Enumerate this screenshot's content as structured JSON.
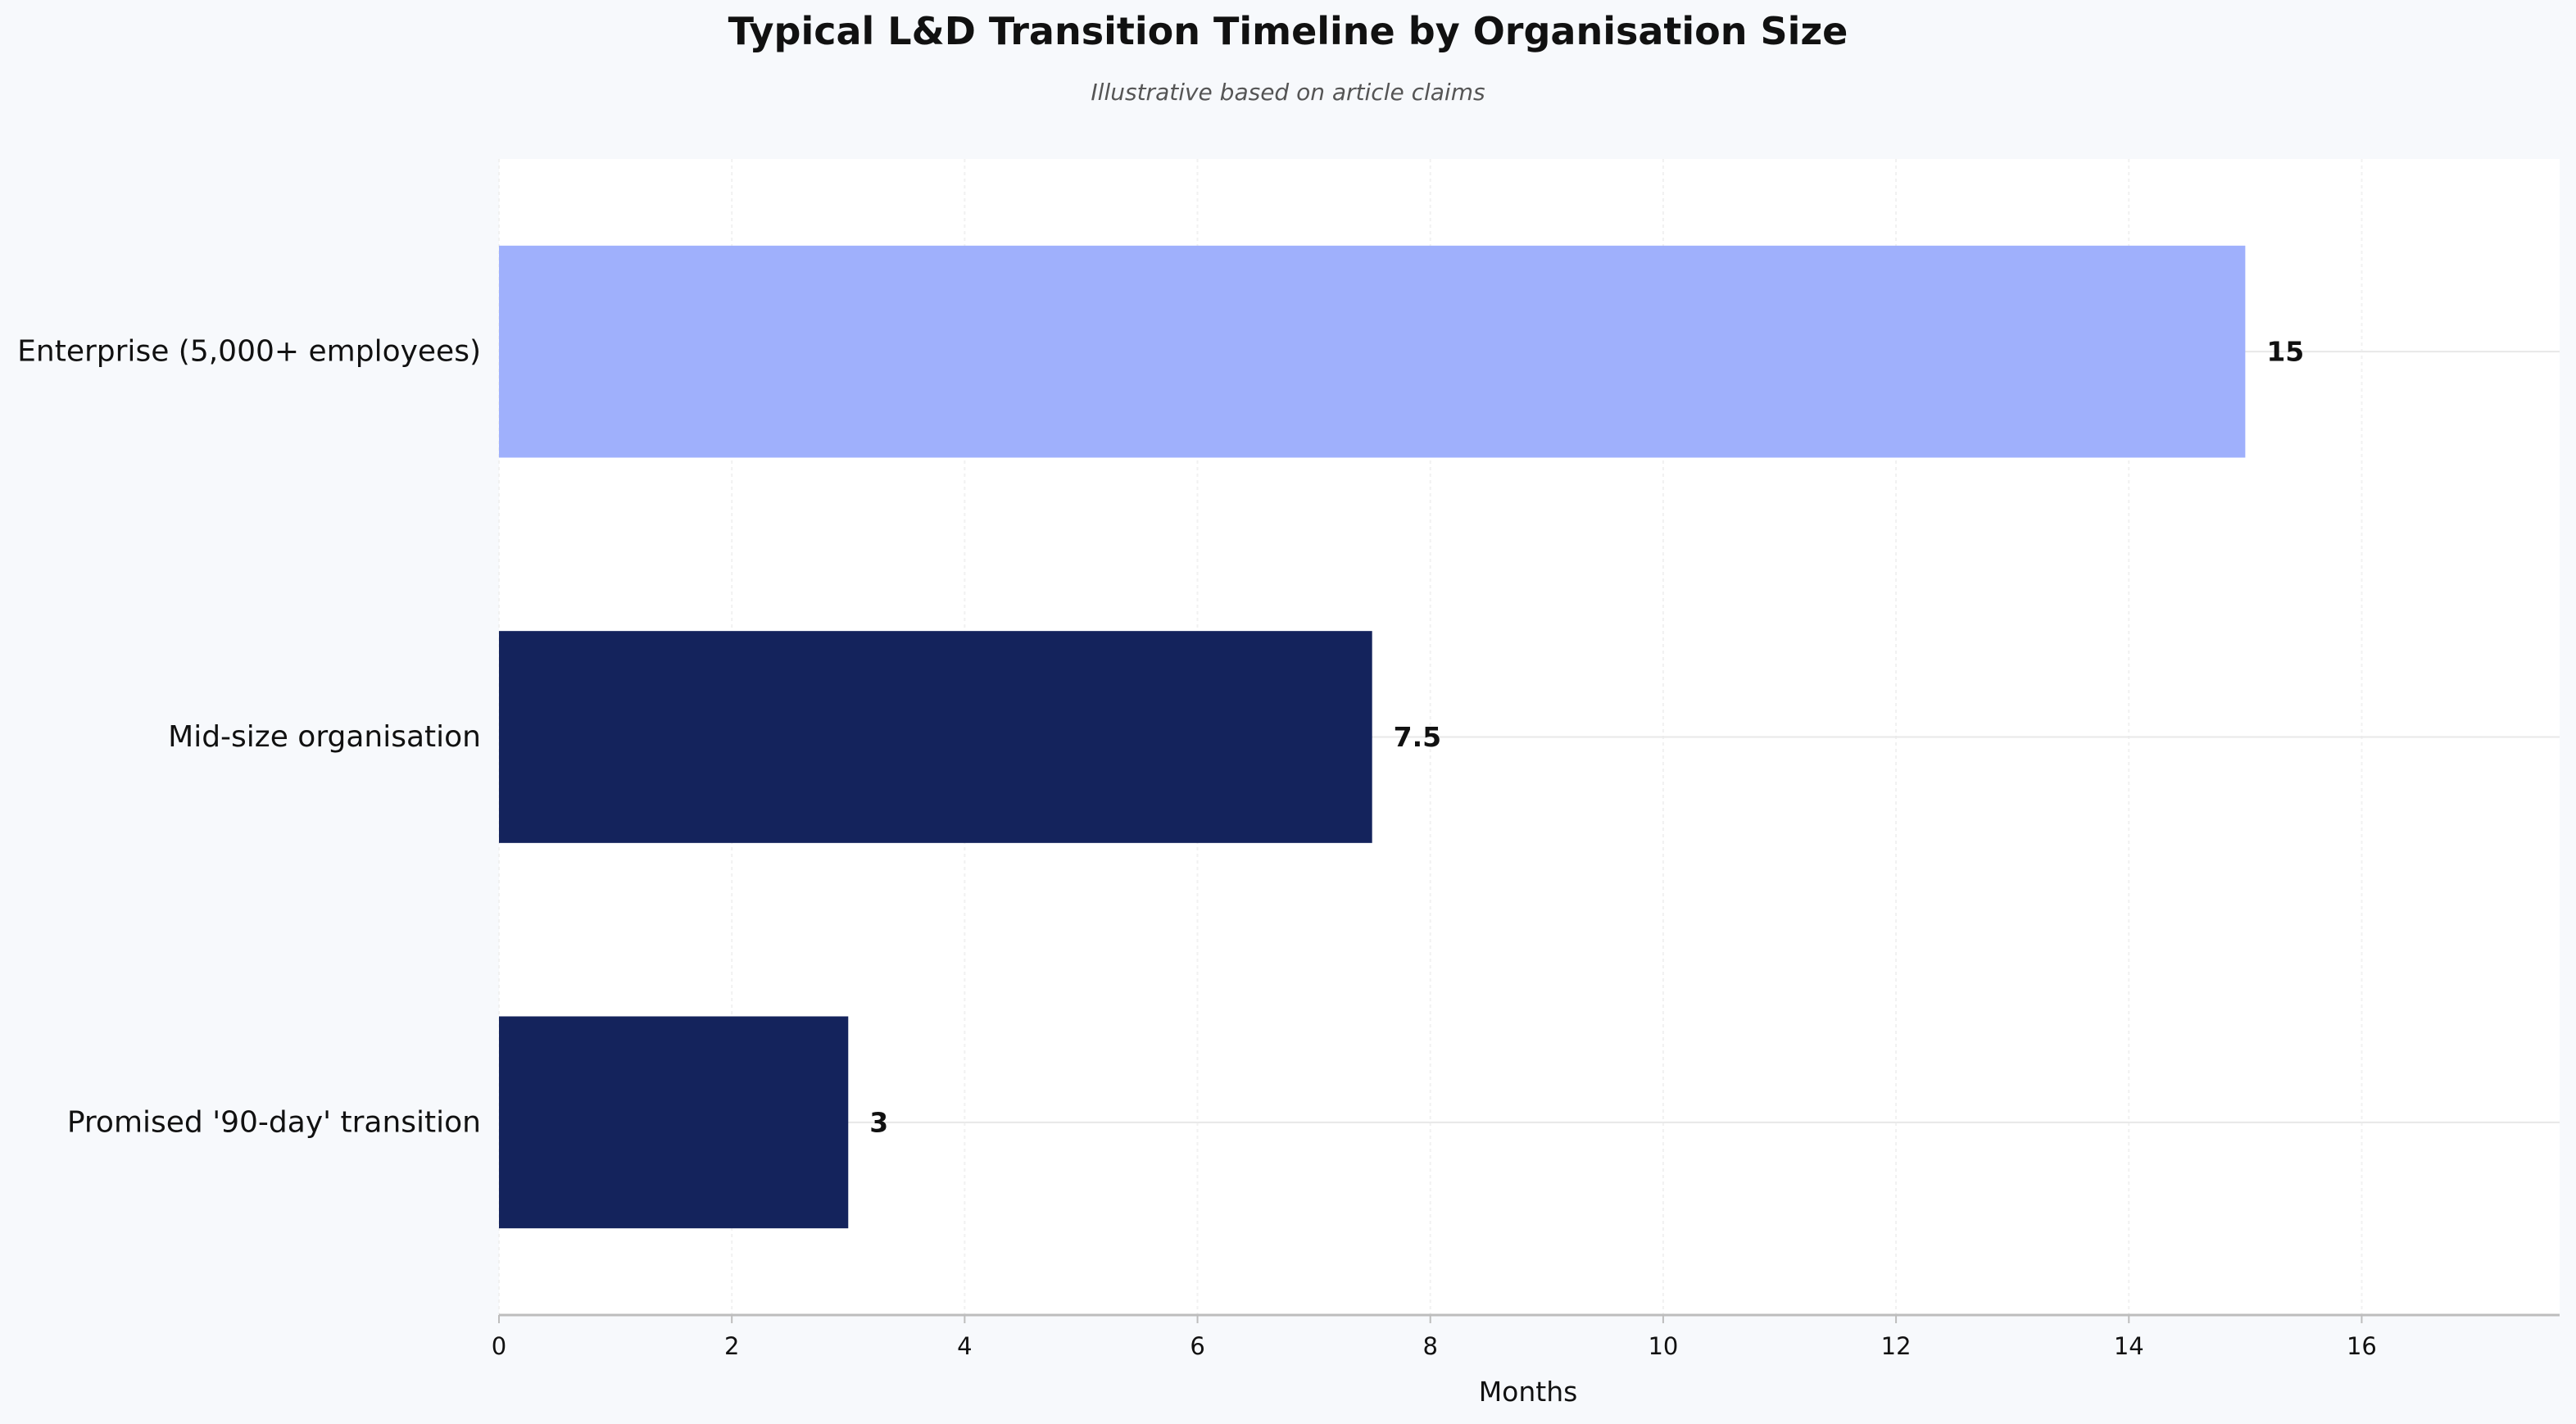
{
  "chart_data": {
    "type": "bar",
    "orientation": "horizontal",
    "title": "Typical L&D Transition Timeline by Organisation Size",
    "subtitle": "Illustrative based on article claims",
    "xlabel": "Months",
    "ylabel": "",
    "categories": [
      "Enterprise (5,000+ employees)",
      "Mid-size organisation",
      "Promised '90-day' transition"
    ],
    "values": [
      15,
      7.5,
      3
    ],
    "value_labels": [
      "15",
      "7.5",
      "3"
    ],
    "bar_colors": [
      "#9fb0fc",
      "#14235c",
      "#14235c"
    ],
    "xlim": [
      0,
      17.7
    ],
    "xticks": [
      0,
      2,
      4,
      6,
      8,
      10,
      12,
      14,
      16
    ],
    "grid": true,
    "legend": "none"
  },
  "colors": {
    "page_background": "#f7f9fc",
    "plot_background": "#ffffff",
    "highlight_bar": "#9fb0fc",
    "standard_bar": "#14235c",
    "gridline": "#e8e8e8",
    "axis": "#bdbdbd"
  }
}
